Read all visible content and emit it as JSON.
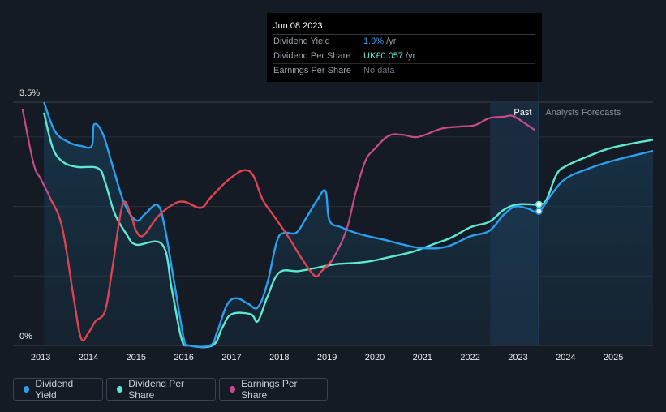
{
  "chart_data": {
    "type": "line",
    "y_axis": {
      "min": 0,
      "max": 3.5,
      "top_label": "3.5%",
      "bottom_label": "0%"
    },
    "x_axis": {
      "min": 2012.42,
      "max": 2025.83,
      "ticks": [
        "2013",
        "2014",
        "2015",
        "2016",
        "2017",
        "2018",
        "2019",
        "2020",
        "2021",
        "2022",
        "2023",
        "2024",
        "2025"
      ]
    },
    "past_label": "Past",
    "forecast_label": "Analysts Forecasts",
    "forecast_start": 2022.42,
    "cursor_x": 2023.44,
    "series": [
      {
        "name": "Dividend Yield",
        "color": "#2b9ef0",
        "values": [
          [
            2013.07,
            3.5
          ],
          [
            2013.3,
            3.08
          ],
          [
            2013.6,
            2.92
          ],
          [
            2013.85,
            2.87
          ],
          [
            2014.07,
            2.87
          ],
          [
            2014.12,
            3.18
          ],
          [
            2014.3,
            3.05
          ],
          [
            2014.5,
            2.6
          ],
          [
            2014.75,
            2.05
          ],
          [
            2015.0,
            1.8
          ],
          [
            2015.2,
            1.9
          ],
          [
            2015.45,
            2.02
          ],
          [
            2015.6,
            1.7
          ],
          [
            2015.8,
            0.9
          ],
          [
            2016.0,
            0.1
          ],
          [
            2016.1,
            0
          ],
          [
            2016.55,
            0
          ],
          [
            2016.7,
            0.2
          ],
          [
            2016.9,
            0.58
          ],
          [
            2017.1,
            0.68
          ],
          [
            2017.35,
            0.6
          ],
          [
            2017.55,
            0.55
          ],
          [
            2017.75,
            0.9
          ],
          [
            2017.95,
            1.5
          ],
          [
            2018.1,
            1.62
          ],
          [
            2018.35,
            1.62
          ],
          [
            2018.55,
            1.82
          ],
          [
            2018.8,
            2.1
          ],
          [
            2018.97,
            2.22
          ],
          [
            2019.05,
            1.8
          ],
          [
            2019.3,
            1.7
          ],
          [
            2019.7,
            1.6
          ],
          [
            2020.2,
            1.52
          ],
          [
            2020.6,
            1.45
          ],
          [
            2021.0,
            1.4
          ],
          [
            2021.5,
            1.42
          ],
          [
            2022.0,
            1.57
          ],
          [
            2022.4,
            1.65
          ],
          [
            2022.7,
            1.88
          ],
          [
            2022.95,
            2.0
          ],
          [
            2023.2,
            1.97
          ],
          [
            2023.44,
            1.93
          ],
          [
            2023.7,
            2.17
          ],
          [
            2024.0,
            2.4
          ],
          [
            2024.5,
            2.55
          ],
          [
            2025.0,
            2.66
          ],
          [
            2025.83,
            2.8
          ]
        ]
      },
      {
        "name": "Dividend Per Share",
        "color": "#5de8d0",
        "values": [
          [
            2013.07,
            3.35
          ],
          [
            2013.25,
            2.85
          ],
          [
            2013.45,
            2.65
          ],
          [
            2013.75,
            2.57
          ],
          [
            2014.2,
            2.55
          ],
          [
            2014.35,
            2.35
          ],
          [
            2014.55,
            1.9
          ],
          [
            2014.8,
            1.6
          ],
          [
            2015.0,
            1.45
          ],
          [
            2015.55,
            1.45
          ],
          [
            2015.75,
            0.8
          ],
          [
            2015.95,
            0.1
          ],
          [
            2016.1,
            0
          ],
          [
            2016.6,
            0
          ],
          [
            2016.8,
            0.25
          ],
          [
            2017.0,
            0.45
          ],
          [
            2017.4,
            0.45
          ],
          [
            2017.55,
            0.35
          ],
          [
            2017.75,
            0.7
          ],
          [
            2018.0,
            1.05
          ],
          [
            2018.4,
            1.07
          ],
          [
            2018.8,
            1.12
          ],
          [
            2019.2,
            1.17
          ],
          [
            2019.8,
            1.2
          ],
          [
            2020.3,
            1.27
          ],
          [
            2020.8,
            1.35
          ],
          [
            2021.2,
            1.45
          ],
          [
            2021.6,
            1.55
          ],
          [
            2022.0,
            1.7
          ],
          [
            2022.4,
            1.78
          ],
          [
            2022.7,
            1.95
          ],
          [
            2023.0,
            2.03
          ],
          [
            2023.44,
            2.03
          ],
          [
            2023.6,
            2.1
          ],
          [
            2023.8,
            2.45
          ],
          [
            2024.0,
            2.58
          ],
          [
            2024.5,
            2.73
          ],
          [
            2025.0,
            2.85
          ],
          [
            2025.83,
            2.96
          ]
        ]
      },
      {
        "name": "Earnings Per Share",
        "color": "#c94a89",
        "values": [
          [
            2012.62,
            3.4
          ],
          [
            2012.85,
            2.62
          ],
          [
            2013.0,
            2.4
          ],
          [
            2013.2,
            2.12
          ],
          [
            2013.45,
            1.7
          ],
          [
            2013.7,
            0.65
          ],
          [
            2013.85,
            0.1
          ],
          [
            2014.0,
            0.18
          ],
          [
            2014.15,
            0.35
          ],
          [
            2014.35,
            0.5
          ],
          [
            2014.5,
            1.1
          ],
          [
            2014.72,
            2.03
          ],
          [
            2014.9,
            1.85
          ],
          [
            2015.0,
            1.65
          ],
          [
            2015.15,
            1.58
          ],
          [
            2015.45,
            1.85
          ],
          [
            2015.75,
            2.02
          ],
          [
            2016.0,
            2.07
          ],
          [
            2016.35,
            1.98
          ],
          [
            2016.55,
            2.12
          ],
          [
            2016.8,
            2.3
          ],
          [
            2017.0,
            2.42
          ],
          [
            2017.25,
            2.52
          ],
          [
            2017.45,
            2.45
          ],
          [
            2017.65,
            2.1
          ],
          [
            2017.9,
            1.85
          ],
          [
            2018.2,
            1.55
          ],
          [
            2018.5,
            1.22
          ],
          [
            2018.75,
            1.0
          ],
          [
            2018.9,
            1.08
          ],
          [
            2019.1,
            1.22
          ],
          [
            2019.4,
            1.65
          ],
          [
            2019.6,
            2.2
          ],
          [
            2019.8,
            2.65
          ],
          [
            2020.0,
            2.83
          ],
          [
            2020.3,
            3.02
          ],
          [
            2020.6,
            3.03
          ],
          [
            2020.9,
            3.0
          ],
          [
            2021.4,
            3.12
          ],
          [
            2021.8,
            3.15
          ],
          [
            2022.1,
            3.17
          ],
          [
            2022.4,
            3.27
          ],
          [
            2022.7,
            3.29
          ],
          [
            2022.9,
            3.3
          ],
          [
            2023.2,
            3.17
          ],
          [
            2023.35,
            3.1
          ]
        ]
      }
    ],
    "cursor_points": [
      {
        "series": "Dividend Yield",
        "x": 2023.44,
        "y": 1.93
      },
      {
        "series": "Dividend Per Share",
        "x": 2023.44,
        "y": 2.03
      }
    ]
  },
  "tooltip": {
    "date": "Jun 08 2023",
    "rows": [
      {
        "label": "Dividend Yield",
        "value": "1.9%",
        "unit": " /yr",
        "color": "#2b9ef0"
      },
      {
        "label": "Dividend Per Share",
        "value": "UK£0.057",
        "unit": " /yr",
        "color": "#5de8d0"
      },
      {
        "label": "Earnings Per Share",
        "value": "No data",
        "unit": "",
        "color": "#6e7580"
      }
    ]
  },
  "legend": [
    {
      "label": "Dividend Yield",
      "color": "#2b9ef0"
    },
    {
      "label": "Dividend Per Share",
      "color": "#5de8d0"
    },
    {
      "label": "Earnings Per Share",
      "color": "#c94a89"
    }
  ]
}
